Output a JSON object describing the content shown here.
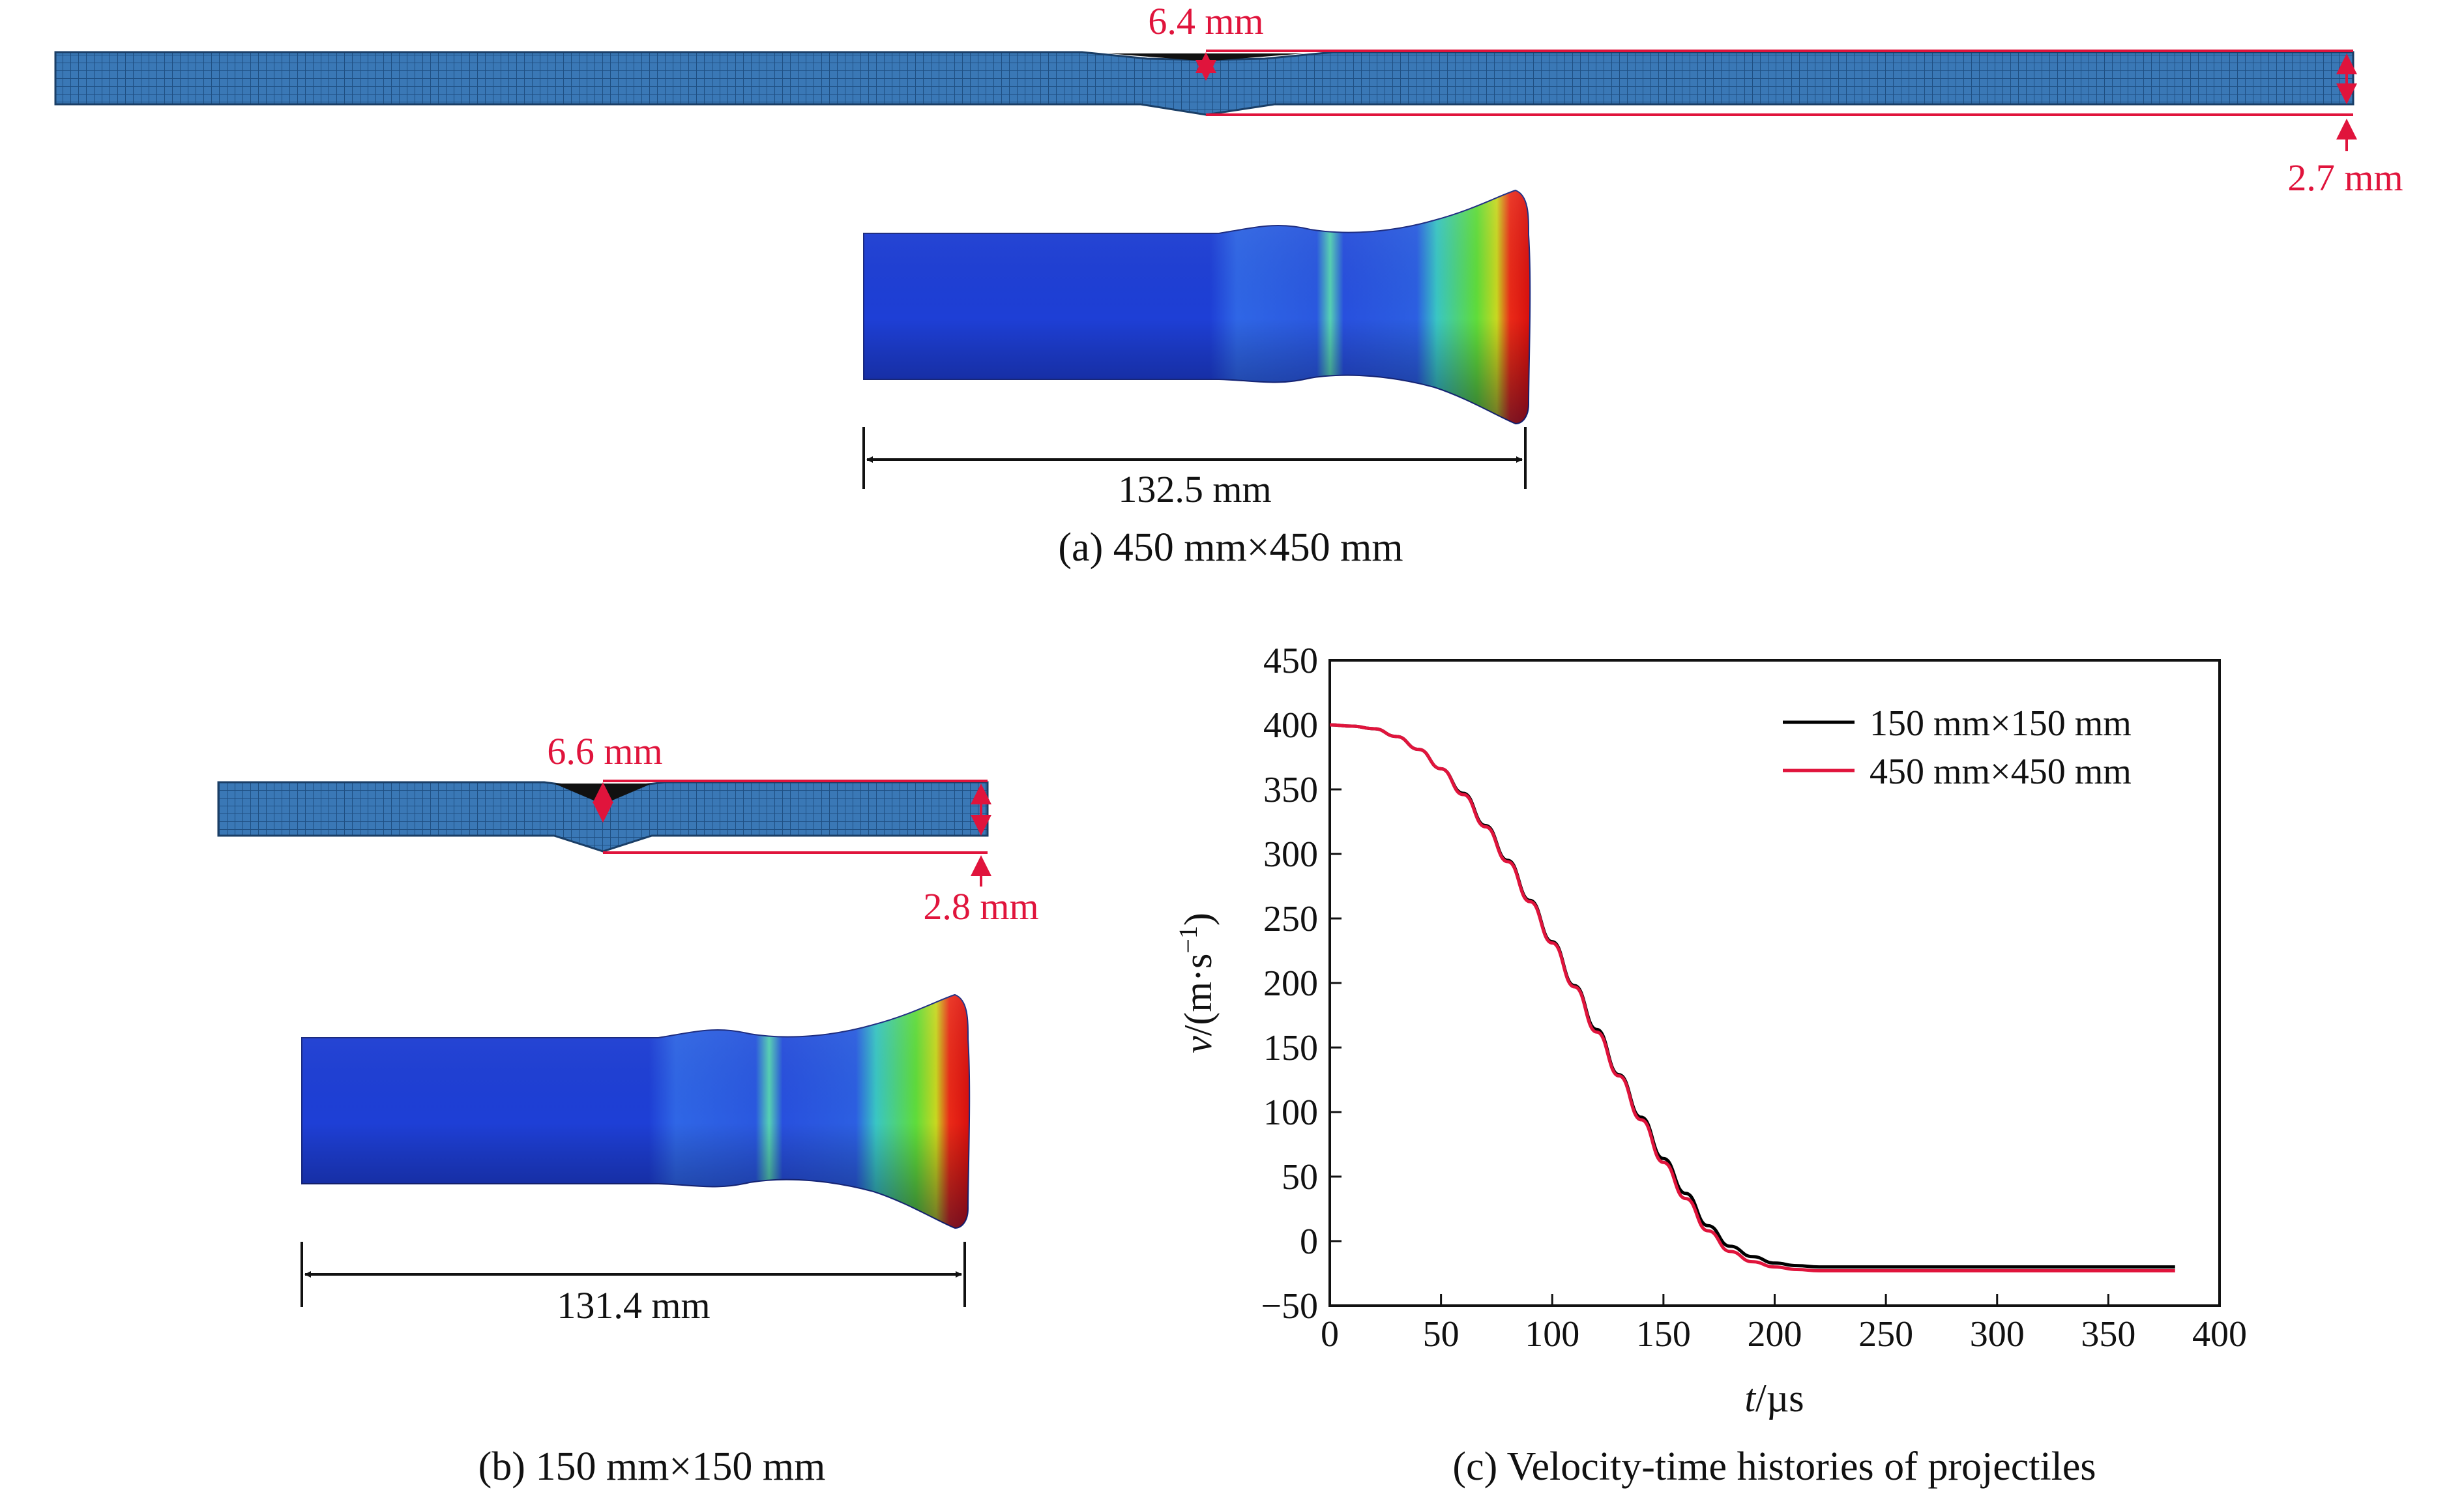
{
  "panel_a": {
    "caption": "(a) 450 mm×450 mm",
    "plate_depth": "6.4 mm",
    "plate_thickness": "2.7 mm",
    "projectile_length": "132.5 mm"
  },
  "panel_b": {
    "caption": "(b) 150 mm×150 mm",
    "plate_depth": "6.6 mm",
    "plate_thickness": "2.8 mm",
    "projectile_length": "131.4 mm"
  },
  "panel_c": {
    "caption": "(c) Velocity-time histories of projectiles"
  },
  "colors": {
    "annotation_red": "#e0143c",
    "mesh_blue": "#2a6fb0",
    "series_black": "#000000",
    "series_red": "#e0143c"
  },
  "chart_data": {
    "type": "line",
    "xlabel_var": "t",
    "xlabel_unit": "/µs",
    "ylabel_var": "v",
    "ylabel_unit": "/(m·s",
    "ylabel_sup": "−1",
    "ylabel_close": ")",
    "xlim": [
      0,
      400
    ],
    "ylim": [
      -50,
      450
    ],
    "xticks": [
      0,
      50,
      100,
      150,
      200,
      250,
      300,
      350,
      400
    ],
    "yticks": [
      -50,
      0,
      50,
      100,
      150,
      200,
      250,
      300,
      350,
      400,
      450
    ],
    "legend_position": "top-right",
    "series": [
      {
        "name": "150 mm×150 mm",
        "color": "#000000",
        "points": [
          [
            0,
            400
          ],
          [
            10,
            399
          ],
          [
            20,
            397
          ],
          [
            30,
            391
          ],
          [
            40,
            381
          ],
          [
            50,
            366
          ],
          [
            60,
            347
          ],
          [
            70,
            322
          ],
          [
            80,
            295
          ],
          [
            90,
            264
          ],
          [
            100,
            232
          ],
          [
            110,
            198
          ],
          [
            120,
            164
          ],
          [
            130,
            129
          ],
          [
            140,
            96
          ],
          [
            150,
            64
          ],
          [
            160,
            37
          ],
          [
            170,
            12
          ],
          [
            180,
            -4
          ],
          [
            190,
            -12
          ],
          [
            200,
            -17
          ],
          [
            210,
            -19
          ],
          [
            220,
            -20
          ],
          [
            250,
            -20
          ],
          [
            300,
            -20
          ],
          [
            350,
            -20
          ],
          [
            380,
            -20
          ]
        ]
      },
      {
        "name": "450 mm×450 mm",
        "color": "#e0143c",
        "points": [
          [
            0,
            400
          ],
          [
            10,
            399
          ],
          [
            20,
            397
          ],
          [
            30,
            391
          ],
          [
            40,
            381
          ],
          [
            50,
            366
          ],
          [
            60,
            346
          ],
          [
            70,
            321
          ],
          [
            80,
            294
          ],
          [
            90,
            263
          ],
          [
            100,
            231
          ],
          [
            110,
            197
          ],
          [
            120,
            162
          ],
          [
            130,
            128
          ],
          [
            140,
            94
          ],
          [
            150,
            61
          ],
          [
            160,
            33
          ],
          [
            170,
            8
          ],
          [
            180,
            -8
          ],
          [
            190,
            -16
          ],
          [
            200,
            -20
          ],
          [
            210,
            -22
          ],
          [
            220,
            -23
          ],
          [
            250,
            -23
          ],
          [
            300,
            -23
          ],
          [
            350,
            -23
          ],
          [
            380,
            -23
          ]
        ]
      }
    ]
  }
}
